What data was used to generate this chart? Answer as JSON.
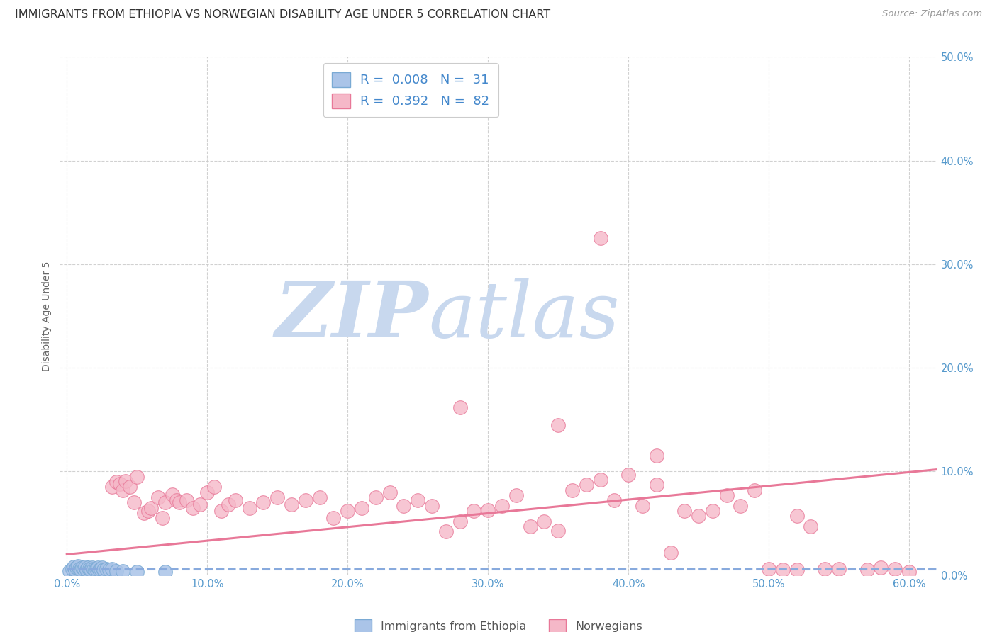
{
  "title": "IMMIGRANTS FROM ETHIOPIA VS NORWEGIAN DISABILITY AGE UNDER 5 CORRELATION CHART",
  "source": "Source: ZipAtlas.com",
  "ylabel": "Disability Age Under 5",
  "xlabel_ticks": [
    "0.0%",
    "10.0%",
    "20.0%",
    "30.0%",
    "40.0%",
    "50.0%",
    "60.0%"
  ],
  "xlabel_vals": [
    0.0,
    0.1,
    0.2,
    0.3,
    0.4,
    0.5,
    0.6
  ],
  "ylabel_ticks": [
    "0.0%",
    "10.0%",
    "20.0%",
    "30.0%",
    "40.0%",
    "50.0%"
  ],
  "ylabel_vals": [
    0.0,
    0.1,
    0.2,
    0.3,
    0.4,
    0.5
  ],
  "ylim": [
    0.0,
    0.42
  ],
  "xlim": [
    -0.005,
    0.62
  ],
  "background_color": "#ffffff",
  "grid_color": "#cccccc",
  "watermark_line1": "ZIP",
  "watermark_line2": "atlas",
  "watermark_color": "#c8d8ee",
  "blue_fill": "#aac4e8",
  "blue_edge": "#7aaad4",
  "pink_fill": "#f5b8c8",
  "pink_edge": "#e87898",
  "blue_line_color": "#88aadd",
  "pink_line_color": "#e87898",
  "title_fontsize": 11.5,
  "source_fontsize": 9.5,
  "axis_label_fontsize": 10,
  "tick_fontsize": 10.5,
  "legend_fontsize": 13,
  "blue_scatter_x": [
    0.002,
    0.004,
    0.005,
    0.006,
    0.007,
    0.008,
    0.009,
    0.01,
    0.011,
    0.012,
    0.013,
    0.014,
    0.015,
    0.016,
    0.017,
    0.018,
    0.019,
    0.02,
    0.021,
    0.022,
    0.023,
    0.024,
    0.025,
    0.026,
    0.028,
    0.03,
    0.032,
    0.035,
    0.04,
    0.05,
    0.07
  ],
  "blue_scatter_y": [
    0.004,
    0.006,
    0.008,
    0.005,
    0.007,
    0.009,
    0.006,
    0.005,
    0.007,
    0.006,
    0.008,
    0.005,
    0.007,
    0.006,
    0.005,
    0.007,
    0.006,
    0.005,
    0.006,
    0.007,
    0.005,
    0.006,
    0.007,
    0.005,
    0.006,
    0.005,
    0.006,
    0.004,
    0.004,
    0.003,
    0.003
  ],
  "pink_scatter_x": [
    0.005,
    0.01,
    0.02,
    0.025,
    0.03,
    0.032,
    0.035,
    0.038,
    0.04,
    0.042,
    0.045,
    0.048,
    0.05,
    0.055,
    0.058,
    0.06,
    0.065,
    0.068,
    0.07,
    0.075,
    0.078,
    0.08,
    0.085,
    0.09,
    0.095,
    0.1,
    0.105,
    0.11,
    0.115,
    0.12,
    0.13,
    0.14,
    0.15,
    0.16,
    0.17,
    0.18,
    0.19,
    0.2,
    0.21,
    0.22,
    0.23,
    0.24,
    0.25,
    0.26,
    0.27,
    0.28,
    0.29,
    0.3,
    0.31,
    0.32,
    0.33,
    0.34,
    0.35,
    0.36,
    0.37,
    0.38,
    0.39,
    0.4,
    0.41,
    0.42,
    0.43,
    0.44,
    0.45,
    0.46,
    0.47,
    0.48,
    0.49,
    0.5,
    0.51,
    0.52,
    0.53,
    0.54,
    0.55,
    0.57,
    0.58,
    0.59,
    0.6,
    0.42,
    0.28,
    0.35,
    0.38,
    0.52
  ],
  "pink_scatter_y": [
    0.005,
    0.004,
    0.004,
    0.006,
    0.003,
    0.085,
    0.09,
    0.088,
    0.082,
    0.091,
    0.085,
    0.07,
    0.095,
    0.06,
    0.062,
    0.065,
    0.075,
    0.055,
    0.07,
    0.078,
    0.072,
    0.07,
    0.072,
    0.065,
    0.068,
    0.08,
    0.085,
    0.062,
    0.068,
    0.072,
    0.065,
    0.07,
    0.075,
    0.068,
    0.072,
    0.075,
    0.055,
    0.062,
    0.065,
    0.075,
    0.08,
    0.067,
    0.072,
    0.067,
    0.042,
    0.052,
    0.062,
    0.063,
    0.067,
    0.077,
    0.047,
    0.052,
    0.043,
    0.082,
    0.087,
    0.092,
    0.072,
    0.097,
    0.067,
    0.087,
    0.022,
    0.062,
    0.057,
    0.062,
    0.077,
    0.067,
    0.082,
    0.006,
    0.005,
    0.057,
    0.047,
    0.006,
    0.006,
    0.005,
    0.007,
    0.006,
    0.003,
    0.115,
    0.162,
    0.145,
    0.325,
    0.005
  ],
  "pink_line_x0": 0.0,
  "pink_line_y0": 0.02,
  "pink_line_x1": 0.62,
  "pink_line_y1": 0.102,
  "blue_line_x0": 0.0,
  "blue_line_y0": 0.006,
  "blue_line_x1": 0.62,
  "blue_line_y1": 0.006
}
